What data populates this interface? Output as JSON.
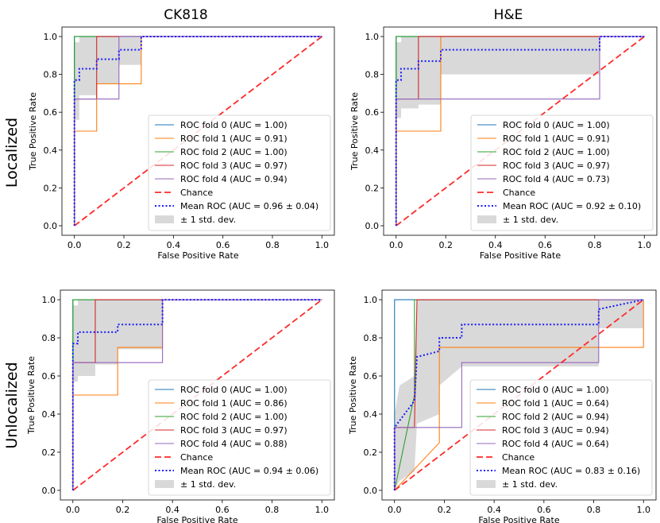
{
  "figure": {
    "column_titles": [
      "CK818",
      "H&E"
    ],
    "row_titles": [
      "Localized",
      "Unlocalized"
    ]
  },
  "chart_data": [
    {
      "type": "line",
      "panel": "CK818 / Localized",
      "xlabel": "False Positive Rate",
      "ylabel": "True Positive Rate",
      "xlim": [
        0,
        1
      ],
      "ylim": [
        0,
        1
      ],
      "xticks": [
        "0.0",
        "0.2",
        "0.4",
        "0.6",
        "0.8",
        "1.0"
      ],
      "yticks": [
        "0.0",
        "0.2",
        "0.4",
        "0.6",
        "0.8",
        "1.0"
      ],
      "legend_position": "lower-right",
      "series": [
        {
          "name": "ROC fold 0 (AUC = 1.00)",
          "color": "#1f77b4",
          "style": "solid",
          "x": [
            0,
            0,
            1
          ],
          "y": [
            0,
            1,
            1
          ]
        },
        {
          "name": "ROC fold 1 (AUC = 0.91)",
          "color": "#ff7f0e",
          "style": "solid",
          "x": [
            0,
            0,
            0.09,
            0.09,
            0.27,
            0.27,
            1
          ],
          "y": [
            0,
            0.5,
            0.5,
            0.75,
            0.75,
            1,
            1
          ]
        },
        {
          "name": "ROC fold 2 (AUC = 1.00)",
          "color": "#2ca02c",
          "style": "solid",
          "x": [
            0,
            0,
            1
          ],
          "y": [
            0,
            1,
            1
          ]
        },
        {
          "name": "ROC fold 3 (AUC = 0.97)",
          "color": "#d62728",
          "style": "solid",
          "x": [
            0,
            0,
            0.09,
            0.09,
            1
          ],
          "y": [
            0,
            0.67,
            0.67,
            1,
            1
          ]
        },
        {
          "name": "ROC fold 4 (AUC = 0.94)",
          "color": "#9467bd",
          "style": "solid",
          "x": [
            0,
            0,
            0.18,
            0.18,
            1
          ],
          "y": [
            0,
            0.67,
            0.67,
            1,
            1
          ]
        },
        {
          "name": "Chance",
          "color": "#ff2a2a",
          "style": "dashed",
          "x": [
            0,
            1
          ],
          "y": [
            0,
            1
          ]
        },
        {
          "name": "Mean ROC (AUC = 0.96 ± 0.04)",
          "color": "#1a1aff",
          "style": "dotted",
          "x": [
            0,
            0,
            0.02,
            0.02,
            0.09,
            0.09,
            0.18,
            0.18,
            0.27,
            0.27,
            1
          ],
          "y": [
            0,
            0.77,
            0.77,
            0.83,
            0.83,
            0.88,
            0.88,
            0.93,
            0.93,
            1,
            1
          ]
        }
      ],
      "band": {
        "name": "± 1 std. dev.",
        "color": "#d9d9d9",
        "x": [
          0,
          0.02,
          0.02,
          0.09,
          0.09,
          0.18,
          0.18,
          0.27,
          0.27,
          1
        ],
        "upper": [
          0.97,
          0.97,
          1,
          1,
          1,
          1,
          1,
          1,
          1,
          1
        ],
        "lower": [
          0.56,
          0.56,
          0.69,
          0.69,
          0.75,
          0.75,
          0.85,
          0.85,
          1,
          1
        ]
      }
    },
    {
      "type": "line",
      "panel": "H&E / Localized",
      "xlabel": "False Positive Rate",
      "ylabel": "True Positive Rate",
      "xlim": [
        0,
        1
      ],
      "ylim": [
        0,
        1
      ],
      "xticks": [
        "0.0",
        "0.2",
        "0.4",
        "0.6",
        "0.8",
        "1.0"
      ],
      "yticks": [
        "0.0",
        "0.2",
        "0.4",
        "0.6",
        "0.8",
        "1.0"
      ],
      "legend_position": "lower-right",
      "series": [
        {
          "name": "ROC fold 0 (AUC = 1.00)",
          "color": "#1f77b4",
          "style": "solid",
          "x": [
            0,
            0,
            1
          ],
          "y": [
            0,
            1,
            1
          ]
        },
        {
          "name": "ROC fold 1 (AUC = 0.91)",
          "color": "#ff7f0e",
          "style": "solid",
          "x": [
            0,
            0,
            0.18,
            0.18,
            1
          ],
          "y": [
            0,
            0.5,
            0.5,
            1,
            1
          ]
        },
        {
          "name": "ROC fold 2 (AUC = 1.00)",
          "color": "#2ca02c",
          "style": "solid",
          "x": [
            0,
            0,
            1
          ],
          "y": [
            0,
            1,
            1
          ]
        },
        {
          "name": "ROC fold 3 (AUC = 0.97)",
          "color": "#d62728",
          "style": "solid",
          "x": [
            0,
            0,
            0.09,
            0.09,
            1
          ],
          "y": [
            0,
            0.67,
            0.67,
            1,
            1
          ]
        },
        {
          "name": "ROC fold 4 (AUC = 0.73)",
          "color": "#9467bd",
          "style": "solid",
          "x": [
            0,
            0,
            0.82,
            0.82,
            1
          ],
          "y": [
            0,
            0.67,
            0.67,
            1,
            1
          ]
        },
        {
          "name": "Chance",
          "color": "#ff2a2a",
          "style": "dashed",
          "x": [
            0,
            1
          ],
          "y": [
            0,
            1
          ]
        },
        {
          "name": "Mean ROC (AUC = 0.92 ± 0.10)",
          "color": "#1a1aff",
          "style": "dotted",
          "x": [
            0,
            0,
            0.02,
            0.02,
            0.09,
            0.09,
            0.18,
            0.18,
            0.82,
            0.82,
            1
          ],
          "y": [
            0,
            0.77,
            0.77,
            0.83,
            0.83,
            0.87,
            0.87,
            0.93,
            0.93,
            1,
            1
          ]
        }
      ],
      "band": {
        "name": "± 1 std. dev.",
        "color": "#d9d9d9",
        "x": [
          0,
          0.02,
          0.02,
          0.09,
          0.09,
          0.18,
          0.18,
          0.82,
          0.82,
          1
        ],
        "upper": [
          0.97,
          0.97,
          1,
          1,
          1,
          1,
          1,
          1,
          1,
          1
        ],
        "lower": [
          0.57,
          0.57,
          0.62,
          0.62,
          0.64,
          0.64,
          0.8,
          0.8,
          1,
          1
        ]
      }
    },
    {
      "type": "line",
      "panel": "CK818 / Unlocalized",
      "xlabel": "False Positive Rate",
      "ylabel": "True Positive Rate",
      "xlim": [
        0,
        1
      ],
      "ylim": [
        0,
        1
      ],
      "xticks": [
        "0.0",
        "0.2",
        "0.4",
        "0.6",
        "0.8",
        "1.0"
      ],
      "yticks": [
        "0.0",
        "0.2",
        "0.4",
        "0.6",
        "0.8",
        "1.0"
      ],
      "legend_position": "lower-right",
      "series": [
        {
          "name": "ROC fold 0 (AUC = 1.00)",
          "color": "#1f77b4",
          "style": "solid",
          "x": [
            0,
            0,
            1
          ],
          "y": [
            0,
            1,
            1
          ]
        },
        {
          "name": "ROC fold 1 (AUC = 0.86)",
          "color": "#ff7f0e",
          "style": "solid",
          "x": [
            0,
            0,
            0.18,
            0.18,
            0.36,
            0.36,
            1
          ],
          "y": [
            0,
            0.5,
            0.5,
            0.75,
            0.75,
            1,
            1
          ]
        },
        {
          "name": "ROC fold 2 (AUC = 1.00)",
          "color": "#2ca02c",
          "style": "solid",
          "x": [
            0,
            0,
            1
          ],
          "y": [
            0,
            1,
            1
          ]
        },
        {
          "name": "ROC fold 3 (AUC = 0.97)",
          "color": "#d62728",
          "style": "solid",
          "x": [
            0,
            0,
            0.09,
            0.09,
            1
          ],
          "y": [
            0,
            0.67,
            0.67,
            1,
            1
          ]
        },
        {
          "name": "ROC fold 4 (AUC = 0.88)",
          "color": "#9467bd",
          "style": "solid",
          "x": [
            0,
            0,
            0.36,
            0.36,
            1
          ],
          "y": [
            0,
            0.67,
            0.67,
            1,
            1
          ]
        },
        {
          "name": "Chance",
          "color": "#ff2a2a",
          "style": "dashed",
          "x": [
            0,
            1
          ],
          "y": [
            0,
            1
          ]
        },
        {
          "name": "Mean ROC (AUC = 0.94 ± 0.06)",
          "color": "#1a1aff",
          "style": "dotted",
          "x": [
            0,
            0,
            0.02,
            0.02,
            0.09,
            0.09,
            0.18,
            0.18,
            0.36,
            0.36,
            1
          ],
          "y": [
            0,
            0.77,
            0.77,
            0.83,
            0.83,
            0.83,
            0.83,
            0.87,
            0.87,
            1,
            1
          ]
        }
      ],
      "band": {
        "name": "± 1 std. dev.",
        "color": "#d9d9d9",
        "x": [
          0,
          0.02,
          0.02,
          0.09,
          0.09,
          0.18,
          0.18,
          0.36,
          0.36,
          1
        ],
        "upper": [
          0.97,
          0.97,
          1,
          1,
          1,
          1,
          1,
          1,
          1,
          1
        ],
        "lower": [
          0.57,
          0.57,
          0.6,
          0.6,
          0.66,
          0.66,
          0.74,
          0.74,
          1,
          1
        ]
      }
    },
    {
      "type": "line",
      "panel": "H&E / Unlocalized",
      "xlabel": "False Positive Rate",
      "ylabel": "True Positive Rate",
      "xlim": [
        0,
        1
      ],
      "ylim": [
        0,
        1
      ],
      "xticks": [
        "0.0",
        "0.2",
        "0.4",
        "0.6",
        "0.8",
        "1.0"
      ],
      "yticks": [
        "0.0",
        "0.2",
        "0.4",
        "0.6",
        "0.8",
        "1.0"
      ],
      "legend_position": "lower-right",
      "series": [
        {
          "name": "ROC fold 0 (AUC = 1.00)",
          "color": "#1f77b4",
          "style": "solid",
          "x": [
            0,
            0,
            1
          ],
          "y": [
            0,
            1,
            1
          ]
        },
        {
          "name": "ROC fold 1 (AUC = 0.64)",
          "color": "#ff7f0e",
          "style": "solid",
          "x": [
            0,
            0.18,
            0.18,
            1,
            1
          ],
          "y": [
            0,
            0.25,
            0.75,
            0.75,
            1
          ]
        },
        {
          "name": "ROC fold 2 (AUC = 0.94)",
          "color": "#2ca02c",
          "style": "solid",
          "x": [
            0,
            0.08,
            0.08,
            1
          ],
          "y": [
            0,
            0.5,
            1,
            1
          ]
        },
        {
          "name": "ROC fold 3 (AUC = 0.94)",
          "color": "#d62728",
          "style": "solid",
          "x": [
            0,
            0,
            0.08,
            0.09,
            0.09,
            1
          ],
          "y": [
            0,
            0.33,
            0.33,
            1,
            1,
            1
          ]
        },
        {
          "name": "ROC fold 4 (AUC = 0.64)",
          "color": "#9467bd",
          "style": "solid",
          "x": [
            0,
            0,
            0.27,
            0.27,
            0.82,
            0.82,
            1
          ],
          "y": [
            0,
            0.33,
            0.33,
            0.67,
            0.67,
            1,
            1
          ]
        },
        {
          "name": "Chance",
          "color": "#ff2a2a",
          "style": "dashed",
          "x": [
            0,
            1
          ],
          "y": [
            0,
            1
          ]
        },
        {
          "name": "Mean ROC (AUC = 0.83 ± 0.16)",
          "color": "#1a1aff",
          "style": "dotted",
          "x": [
            0,
            0,
            0.08,
            0.09,
            0.18,
            0.18,
            0.27,
            0.27,
            0.82,
            0.82,
            1
          ],
          "y": [
            0,
            0.33,
            0.47,
            0.7,
            0.73,
            0.8,
            0.8,
            0.87,
            0.87,
            0.95,
            1
          ]
        }
      ],
      "band": {
        "name": "± 1 std. dev.",
        "color": "#d9d9d9",
        "x": [
          0,
          0.02,
          0.08,
          0.09,
          0.18,
          0.18,
          0.27,
          0.82,
          0.82,
          1
        ],
        "upper": [
          0.4,
          0.55,
          0.6,
          1,
          1,
          1,
          1,
          1,
          1,
          1
        ],
        "lower": [
          0,
          0.05,
          0.1,
          0.35,
          0.4,
          0.55,
          0.65,
          0.65,
          0.85,
          0.85
        ]
      }
    }
  ]
}
